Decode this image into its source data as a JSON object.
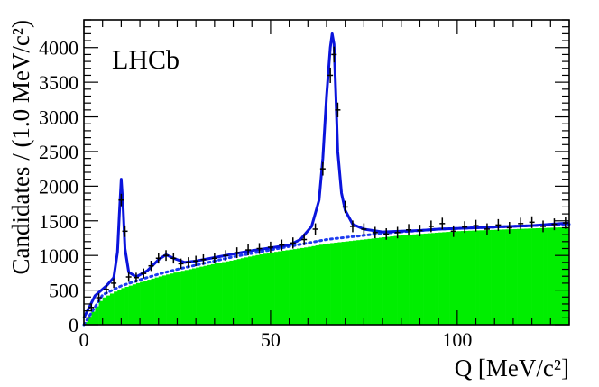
{
  "chart_data": {
    "type": "line",
    "title": "",
    "annotation": "LHCb",
    "xlabel": "Q [MeV/c²]",
    "ylabel": "Candidates / (1.0 MeV/c²)",
    "xlim": [
      0,
      130
    ],
    "ylim": [
      0,
      4400
    ],
    "x_major_ticks": [
      0,
      50,
      100
    ],
    "x_tick_labels": [
      "0",
      "50",
      "100"
    ],
    "y_major_ticks": [
      0,
      500,
      1000,
      1500,
      2000,
      2500,
      3000,
      3500,
      4000
    ],
    "y_tick_labels": [
      "0",
      "500",
      "1000",
      "1500",
      "2000",
      "2500",
      "3000",
      "3500",
      "4000"
    ],
    "grid": false,
    "colors": {
      "fit": "#0a14dc",
      "background_fit": "#1e3cf0",
      "histogram": "#00ee00",
      "data_points": "#000000"
    },
    "series": [
      {
        "kind": "histogram",
        "x": [
          0,
          5,
          10,
          15,
          20,
          25,
          30,
          35,
          40,
          45,
          50,
          55,
          60,
          65,
          70,
          75,
          80,
          85,
          90,
          95,
          100,
          105,
          110,
          115,
          120,
          125,
          130
        ],
        "y": [
          0,
          380,
          520,
          610,
          690,
          760,
          820,
          880,
          930,
          990,
          1040,
          1080,
          1120,
          1170,
          1200,
          1230,
          1260,
          1290,
          1310,
          1330,
          1350,
          1360,
          1370,
          1380,
          1390,
          1400,
          1410
        ]
      },
      {
        "kind": "background-fit",
        "style": "dotted",
        "x": [
          0,
          5,
          10,
          15,
          20,
          25,
          30,
          35,
          40,
          45,
          50,
          55,
          60,
          65,
          70,
          75,
          80,
          85,
          90,
          95,
          100,
          105,
          110,
          115,
          120,
          125,
          130
        ],
        "y": [
          0,
          430,
          560,
          650,
          730,
          800,
          860,
          920,
          980,
          1030,
          1080,
          1130,
          1180,
          1230,
          1260,
          1290,
          1320,
          1340,
          1360,
          1380,
          1390,
          1400,
          1410,
          1420,
          1430,
          1440,
          1450
        ]
      },
      {
        "kind": "total-fit",
        "style": "solid",
        "x": [
          0,
          3,
          6,
          8,
          9,
          9.5,
          10,
          10.5,
          11,
          12,
          14,
          17,
          20,
          22,
          24,
          27,
          30,
          35,
          40,
          45,
          50,
          55,
          58,
          61,
          63,
          64,
          65,
          66,
          66.5,
          67,
          67.5,
          68,
          69,
          70,
          72,
          75,
          80,
          85,
          90,
          95,
          100,
          105,
          110,
          115,
          120,
          125,
          130
        ],
        "y": [
          100,
          420,
          560,
          680,
          1050,
          1600,
          2100,
          1700,
          1100,
          760,
          690,
          780,
          940,
          1010,
          960,
          900,
          920,
          970,
          1020,
          1070,
          1110,
          1150,
          1230,
          1420,
          1800,
          2400,
          3300,
          4000,
          4200,
          4050,
          3300,
          2500,
          1900,
          1650,
          1450,
          1380,
          1340,
          1350,
          1360,
          1380,
          1390,
          1400,
          1410,
          1420,
          1430,
          1450,
          1470
        ]
      },
      {
        "kind": "data-points",
        "x": [
          2,
          4,
          6,
          8,
          10,
          11,
          12,
          14,
          16,
          18,
          20,
          22,
          24,
          26,
          28,
          30,
          32,
          35,
          38,
          41,
          44,
          47,
          50,
          53,
          56,
          59,
          62,
          64,
          66,
          67,
          68,
          70,
          72,
          75,
          78,
          81,
          84,
          87,
          90,
          93,
          96,
          99,
          102,
          105,
          108,
          111,
          114,
          117,
          120,
          123,
          126,
          129
        ],
        "y": [
          250,
          390,
          510,
          600,
          1800,
          1350,
          690,
          680,
          740,
          850,
          960,
          1000,
          960,
          880,
          900,
          920,
          940,
          960,
          1000,
          1040,
          1080,
          1100,
          1120,
          1150,
          1180,
          1230,
          1380,
          2250,
          3600,
          3900,
          3100,
          1700,
          1420,
          1380,
          1330,
          1310,
          1330,
          1370,
          1360,
          1420,
          1460,
          1350,
          1410,
          1430,
          1380,
          1440,
          1400,
          1460,
          1480,
          1420,
          1450,
          1470
        ]
      }
    ]
  }
}
